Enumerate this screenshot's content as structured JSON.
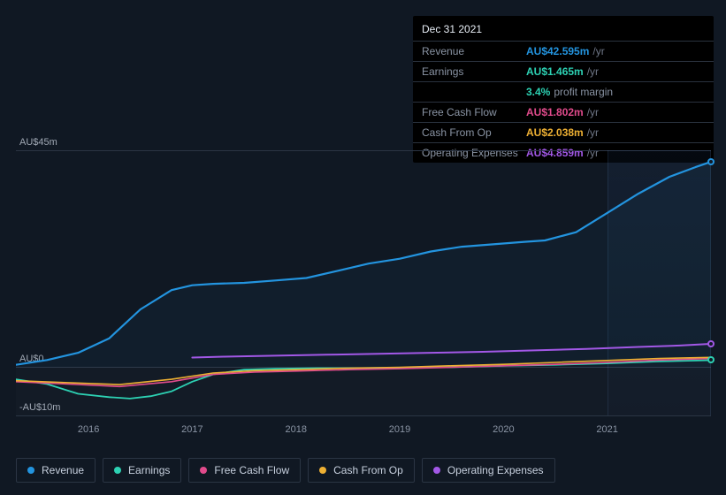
{
  "colors": {
    "revenue": "#2394df",
    "earnings": "#2dd1b3",
    "free_cash_flow": "#e14b8c",
    "cash_from_op": "#eeb033",
    "operating_expenses": "#a258e6",
    "background": "#101823",
    "grid": "#2b3544",
    "text_muted": "#8a94a4",
    "text": "#c7d0de"
  },
  "tooltip": {
    "date": "Dec 31 2021",
    "rows": [
      {
        "label": "Revenue",
        "value": "AU$42.595m",
        "unit": "/yr",
        "color_key": "revenue"
      },
      {
        "label": "Earnings",
        "value": "AU$1.465m",
        "unit": "/yr",
        "color_key": "earnings",
        "sub_value": "3.4%",
        "sub_label": "profit margin"
      },
      {
        "label": "Free Cash Flow",
        "value": "AU$1.802m",
        "unit": "/yr",
        "color_key": "free_cash_flow"
      },
      {
        "label": "Cash From Op",
        "value": "AU$2.038m",
        "unit": "/yr",
        "color_key": "cash_from_op"
      },
      {
        "label": "Operating Expenses",
        "value": "AU$4.859m",
        "unit": "/yr",
        "color_key": "operating_expenses"
      }
    ]
  },
  "chart": {
    "type": "line",
    "y_min": -10,
    "y_max": 45,
    "y_ticks": [
      {
        "v": 45,
        "label": "AU$45m"
      },
      {
        "v": 0,
        "label": "AU$0"
      },
      {
        "v": -10,
        "label": "-AU$10m"
      }
    ],
    "x_min": 2015.3,
    "x_max": 2022.0,
    "x_ticks": [
      2016,
      2017,
      2018,
      2019,
      2020,
      2021
    ],
    "highlight_from": 2021.0,
    "highlight_to": 2022.0,
    "series": {
      "revenue": {
        "color_key": "revenue",
        "width": 2.2,
        "marker_end": true,
        "points": [
          [
            2015.3,
            0.5
          ],
          [
            2015.6,
            1.5
          ],
          [
            2015.9,
            3
          ],
          [
            2016.2,
            6
          ],
          [
            2016.5,
            12
          ],
          [
            2016.8,
            16
          ],
          [
            2017.0,
            17
          ],
          [
            2017.2,
            17.3
          ],
          [
            2017.5,
            17.5
          ],
          [
            2017.8,
            18
          ],
          [
            2018.1,
            18.5
          ],
          [
            2018.4,
            20
          ],
          [
            2018.7,
            21.5
          ],
          [
            2019.0,
            22.5
          ],
          [
            2019.3,
            24
          ],
          [
            2019.6,
            25
          ],
          [
            2019.9,
            25.5
          ],
          [
            2020.2,
            26
          ],
          [
            2020.4,
            26.3
          ],
          [
            2020.7,
            28
          ],
          [
            2021.0,
            32
          ],
          [
            2021.3,
            36
          ],
          [
            2021.6,
            39.5
          ],
          [
            2021.85,
            41.5
          ],
          [
            2022.0,
            42.595
          ]
        ]
      },
      "earnings": {
        "color_key": "earnings",
        "width": 1.8,
        "marker_end": true,
        "points": [
          [
            2015.3,
            -2.5
          ],
          [
            2015.6,
            -3.5
          ],
          [
            2015.9,
            -5.5
          ],
          [
            2016.2,
            -6.2
          ],
          [
            2016.4,
            -6.5
          ],
          [
            2016.6,
            -6.0
          ],
          [
            2016.8,
            -5.0
          ],
          [
            2017.0,
            -3.0
          ],
          [
            2017.2,
            -1.5
          ],
          [
            2017.5,
            -0.5
          ],
          [
            2017.8,
            -0.3
          ],
          [
            2018.2,
            -0.2
          ],
          [
            2018.6,
            -0.2
          ],
          [
            2019.0,
            -0.1
          ],
          [
            2019.5,
            0
          ],
          [
            2020.0,
            0.3
          ],
          [
            2020.5,
            0.5
          ],
          [
            2021.0,
            0.8
          ],
          [
            2021.5,
            1.2
          ],
          [
            2022.0,
            1.465
          ]
        ]
      },
      "free_cash_flow": {
        "color_key": "free_cash_flow",
        "width": 1.6,
        "marker_end": false,
        "points": [
          [
            2015.3,
            -3.0
          ],
          [
            2015.8,
            -3.5
          ],
          [
            2016.3,
            -4.0
          ],
          [
            2016.8,
            -3.0
          ],
          [
            2017.2,
            -1.5
          ],
          [
            2017.6,
            -1.0
          ],
          [
            2018.0,
            -0.8
          ],
          [
            2018.5,
            -0.5
          ],
          [
            2019.0,
            -0.3
          ],
          [
            2019.5,
            0.0
          ],
          [
            2020.0,
            0.3
          ],
          [
            2020.5,
            0.6
          ],
          [
            2021.0,
            1.0
          ],
          [
            2021.5,
            1.5
          ],
          [
            2022.0,
            1.802
          ]
        ]
      },
      "cash_from_op": {
        "color_key": "cash_from_op",
        "width": 1.6,
        "marker_end": false,
        "points": [
          [
            2015.3,
            -2.8
          ],
          [
            2015.8,
            -3.2
          ],
          [
            2016.3,
            -3.6
          ],
          [
            2016.8,
            -2.5
          ],
          [
            2017.2,
            -1.2
          ],
          [
            2017.6,
            -0.7
          ],
          [
            2018.0,
            -0.5
          ],
          [
            2018.5,
            -0.2
          ],
          [
            2019.0,
            0.0
          ],
          [
            2019.5,
            0.3
          ],
          [
            2020.0,
            0.6
          ],
          [
            2020.5,
            1.0
          ],
          [
            2021.0,
            1.4
          ],
          [
            2021.5,
            1.8
          ],
          [
            2022.0,
            2.038
          ]
        ]
      },
      "operating_expenses": {
        "color_key": "operating_expenses",
        "width": 2.0,
        "marker_end": true,
        "points": [
          [
            2017.0,
            2.0
          ],
          [
            2017.3,
            2.2
          ],
          [
            2017.8,
            2.4
          ],
          [
            2018.3,
            2.6
          ],
          [
            2018.8,
            2.8
          ],
          [
            2019.3,
            3.0
          ],
          [
            2019.8,
            3.2
          ],
          [
            2020.3,
            3.5
          ],
          [
            2020.8,
            3.8
          ],
          [
            2021.3,
            4.2
          ],
          [
            2021.7,
            4.5
          ],
          [
            2022.0,
            4.859
          ]
        ]
      }
    }
  },
  "legend": [
    {
      "label": "Revenue",
      "color_key": "revenue"
    },
    {
      "label": "Earnings",
      "color_key": "earnings"
    },
    {
      "label": "Free Cash Flow",
      "color_key": "free_cash_flow"
    },
    {
      "label": "Cash From Op",
      "color_key": "cash_from_op"
    },
    {
      "label": "Operating Expenses",
      "color_key": "operating_expenses"
    }
  ]
}
